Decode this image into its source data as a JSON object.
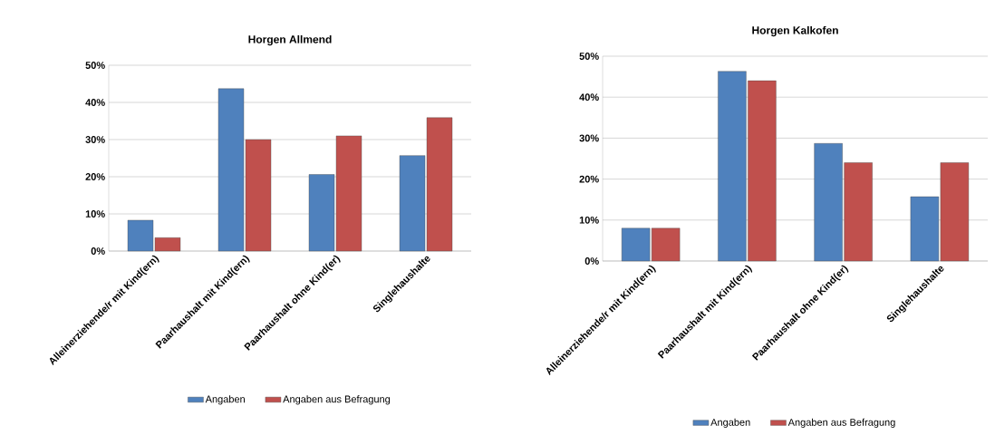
{
  "chart_data": [
    {
      "type": "bar",
      "title": "Horgen Allmend",
      "categories": [
        "Alleinerziehende/r mit Kind(ern)",
        "Paarhaushalt mit Kind(ern)",
        "Paarhaushalt ohne Kind(er)",
        "Singlehaushalte"
      ],
      "series": [
        {
          "name": "Angaben",
          "color": "#4f81bd",
          "values": [
            8.3,
            43.7,
            20.6,
            25.7
          ]
        },
        {
          "name": "Angaben aus Befragung",
          "color": "#c0504d",
          "values": [
            3.6,
            30,
            31,
            35.9
          ]
        }
      ],
      "ylim": [
        0,
        50
      ],
      "yticks": [
        {
          "value": 0,
          "label": "0%"
        },
        {
          "value": 10,
          "label": "10%"
        },
        {
          "value": 20,
          "label": "20%"
        },
        {
          "value": 30,
          "label": "30%"
        },
        {
          "value": 40,
          "label": "40%"
        },
        {
          "value": 50,
          "label": "50%"
        }
      ],
      "grid": "y",
      "legend": "bottom"
    },
    {
      "type": "bar",
      "title": "Horgen Kalkofen",
      "categories": [
        "Alleinerziehende/r mit Kind(ern)",
        "Paarhaushalt mit Kind(ern)",
        "Paarhaushalt ohne Kind(er)",
        "Singlehaushalte"
      ],
      "series": [
        {
          "name": "Angaben",
          "color": "#4f81bd",
          "values": [
            8,
            46.3,
            28.7,
            15.7
          ]
        },
        {
          "name": "Angaben aus Befragung",
          "color": "#c0504d",
          "values": [
            8,
            44,
            24,
            24
          ]
        }
      ],
      "ylim": [
        0,
        50
      ],
      "yticks": [
        {
          "value": 0,
          "label": "0%"
        },
        {
          "value": 10,
          "label": "10%"
        },
        {
          "value": 20,
          "label": "20%"
        },
        {
          "value": 30,
          "label": "30%"
        },
        {
          "value": 40,
          "label": "40%"
        },
        {
          "value": 50,
          "label": "50%"
        }
      ],
      "grid": "y",
      "legend": "bottom"
    }
  ]
}
